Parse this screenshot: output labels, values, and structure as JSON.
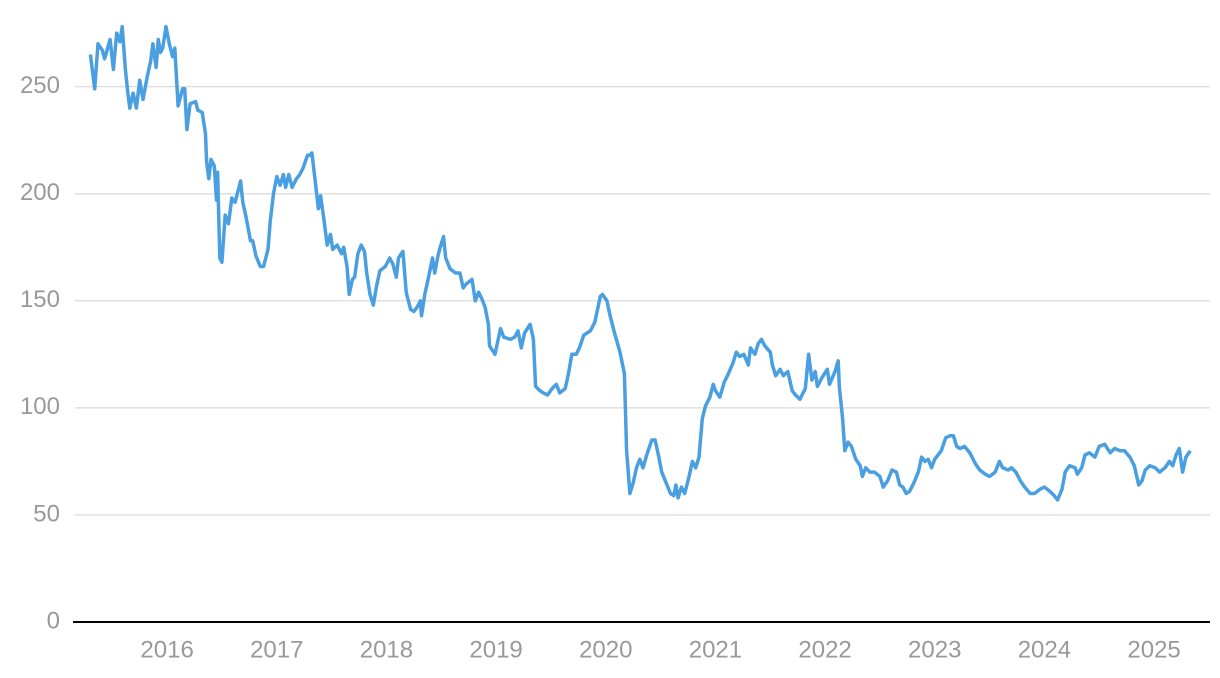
{
  "chart_data": {
    "type": "line",
    "x": [
      2015.3,
      2015.34,
      2015.37,
      2015.41,
      2015.43,
      2015.48,
      2015.51,
      2015.54,
      2015.57,
      2015.59,
      2015.62,
      2015.64,
      2015.66,
      2015.69,
      2015.72,
      2015.75,
      2015.78,
      2015.82,
      2015.85,
      2015.87,
      2015.9,
      2015.92,
      2015.94,
      2015.96,
      2015.99,
      2016.02,
      2016.05,
      2016.07,
      2016.1,
      2016.14,
      2016.16,
      2016.18,
      2016.21,
      2016.26,
      2016.28,
      2016.32,
      2016.35,
      2016.36,
      2016.38,
      2016.4,
      2016.43,
      2016.45,
      2016.46,
      2016.48,
      2016.5,
      2016.53,
      2016.56,
      2016.59,
      2016.62,
      2016.67,
      2016.69,
      2016.72,
      2016.76,
      2016.78,
      2016.81,
      2016.85,
      2016.88,
      2016.92,
      2016.94,
      2016.97,
      2017.0,
      2017.03,
      2017.06,
      2017.08,
      2017.11,
      2017.14,
      2017.18,
      2017.21,
      2017.24,
      2017.28,
      2017.3,
      2017.32,
      2017.35,
      2017.38,
      2017.4,
      2017.43,
      2017.46,
      2017.49,
      2017.51,
      2017.55,
      2017.59,
      2017.61,
      2017.64,
      2017.66,
      2017.69,
      2017.71,
      2017.74,
      2017.77,
      2017.8,
      2017.82,
      2017.85,
      2017.88,
      2017.91,
      2017.94,
      2017.99,
      2018.03,
      2018.06,
      2018.09,
      2018.11,
      2018.15,
      2018.18,
      2018.22,
      2018.25,
      2018.28,
      2018.31,
      2018.32,
      2018.35,
      2018.38,
      2018.42,
      2018.44,
      2018.47,
      2018.49,
      2018.52,
      2018.54,
      2018.58,
      2018.63,
      2018.67,
      2018.7,
      2018.73,
      2018.78,
      2018.81,
      2018.84,
      2018.87,
      2018.9,
      2018.93,
      2018.94,
      2018.99,
      2019.04,
      2019.07,
      2019.13,
      2019.17,
      2019.2,
      2019.23,
      2019.26,
      2019.31,
      2019.34,
      2019.36,
      2019.4,
      2019.43,
      2019.47,
      2019.51,
      2019.55,
      2019.58,
      2019.63,
      2019.66,
      2019.69,
      2019.73,
      2019.76,
      2019.8,
      2019.86,
      2019.9,
      2019.95,
      2019.97,
      2020.01,
      2020.04,
      2020.08,
      2020.13,
      2020.17,
      2020.19,
      2020.22,
      2020.25,
      2020.28,
      2020.31,
      2020.34,
      2020.38,
      2020.42,
      2020.45,
      2020.48,
      2020.51,
      2020.55,
      2020.59,
      2020.62,
      2020.64,
      2020.66,
      2020.69,
      2020.72,
      2020.76,
      2020.79,
      2020.82,
      2020.85,
      2020.88,
      2020.91,
      2020.95,
      2020.98,
      2021.0,
      2021.04,
      2021.08,
      2021.11,
      2021.16,
      2021.19,
      2021.22,
      2021.26,
      2021.3,
      2021.32,
      2021.36,
      2021.39,
      2021.42,
      2021.45,
      2021.5,
      2021.52,
      2021.55,
      2021.59,
      2021.62,
      2021.66,
      2021.7,
      2021.73,
      2021.77,
      2021.82,
      2021.85,
      2021.88,
      2021.91,
      2021.93,
      2021.97,
      2022.02,
      2022.04,
      2022.09,
      2022.12,
      2022.13,
      2022.16,
      2022.18,
      2022.21,
      2022.24,
      2022.28,
      2022.32,
      2022.34,
      2022.37,
      2022.41,
      2022.45,
      2022.5,
      2022.53,
      2022.57,
      2022.61,
      2022.65,
      2022.68,
      2022.71,
      2022.74,
      2022.77,
      2022.81,
      2022.85,
      2022.88,
      2022.91,
      2022.94,
      2022.97,
      2023.0,
      2023.03,
      2023.06,
      2023.1,
      2023.14,
      2023.17,
      2023.2,
      2023.23,
      2023.27,
      2023.32,
      2023.37,
      2023.41,
      2023.46,
      2023.5,
      2023.55,
      2023.59,
      2023.62,
      2023.67,
      2023.7,
      2023.74,
      2023.78,
      2023.82,
      2023.87,
      2023.91,
      2023.96,
      2024.0,
      2024.05,
      2024.09,
      2024.12,
      2024.16,
      2024.19,
      2024.23,
      2024.28,
      2024.3,
      2024.34,
      2024.37,
      2024.41,
      2024.46,
      2024.5,
      2024.55,
      2024.6,
      2024.64,
      2024.69,
      2024.73,
      2024.78,
      2024.82,
      2024.86,
      2024.89,
      2024.92,
      2024.96,
      2025.01,
      2025.05,
      2025.1,
      2025.14,
      2025.17,
      2025.2,
      2025.23,
      2025.26,
      2025.29,
      2025.33
    ],
    "series": [
      {
        "color": "#4a9fe0",
        "values": [
          265,
          249,
          270,
          267,
          263,
          272,
          258,
          275,
          271,
          278,
          258,
          248,
          240,
          247,
          240,
          253,
          244,
          255,
          262,
          270,
          259,
          272,
          266,
          268,
          278,
          270,
          264,
          268,
          241,
          249,
          249,
          230,
          242,
          243,
          239,
          238,
          228,
          215,
          207,
          216,
          213,
          197,
          210,
          170,
          168,
          190,
          186,
          198,
          196,
          206,
          196,
          189,
          178,
          178,
          171,
          166,
          166,
          174,
          187,
          200,
          208,
          204,
          209,
          203,
          209,
          203,
          207,
          209,
          212,
          218,
          218,
          219,
          206,
          193,
          199,
          188,
          176,
          181,
          174,
          176,
          172,
          175,
          166,
          153,
          160,
          161,
          172,
          176,
          173,
          163,
          153,
          148,
          157,
          164,
          166,
          170,
          167,
          161,
          170,
          173,
          154,
          146,
          145,
          147,
          150,
          143,
          153,
          160,
          170,
          163,
          171,
          175,
          180,
          170,
          165,
          163,
          163,
          156,
          158,
          160,
          150,
          154,
          151,
          147,
          139,
          129,
          125,
          137,
          133,
          132,
          133,
          136,
          128,
          135,
          139,
          132,
          110,
          108,
          107,
          106,
          109,
          111,
          107,
          109,
          116,
          125,
          125,
          128,
          134,
          136,
          140,
          152,
          153,
          150,
          143,
          135,
          126,
          116,
          80,
          60,
          65,
          72,
          76,
          72,
          79,
          85,
          85,
          78,
          70,
          65,
          60,
          59,
          64,
          58,
          63,
          60,
          68,
          75,
          72,
          77,
          95,
          101,
          105,
          111,
          108,
          105,
          112,
          115,
          121,
          126,
          124,
          125,
          120,
          128,
          125,
          130,
          132,
          129,
          126,
          120,
          115,
          118,
          115,
          117,
          108,
          106,
          104,
          109,
          125,
          113,
          117,
          110,
          114,
          118,
          111,
          117,
          122,
          110,
          95,
          80,
          84,
          82,
          76,
          73,
          68,
          72,
          70,
          70,
          68,
          63,
          66,
          71,
          70,
          64,
          63,
          60,
          61,
          65,
          70,
          77,
          75,
          76,
          72,
          76,
          78,
          80,
          86,
          87,
          87,
          82,
          81,
          82,
          79,
          74,
          71,
          69,
          68,
          70,
          75,
          72,
          71,
          72,
          70,
          66,
          63,
          60,
          60,
          62,
          63,
          61,
          59,
          57,
          62,
          70,
          73,
          72,
          69,
          72,
          78,
          79,
          77,
          82,
          83,
          79,
          81,
          80,
          80,
          77,
          73,
          64,
          66,
          71,
          73,
          72,
          70,
          72,
          75,
          73,
          78,
          81,
          70,
          77,
          80
        ]
      }
    ],
    "xlim": [
      2015.16,
      2025.51
    ],
    "xticks": [
      2016,
      2017,
      2018,
      2019,
      2020,
      2021,
      2022,
      2023,
      2024,
      2025
    ],
    "ylim": [
      0,
      290
    ],
    "yticks": [
      0,
      50,
      100,
      150,
      200,
      250
    ],
    "grid": true
  }
}
